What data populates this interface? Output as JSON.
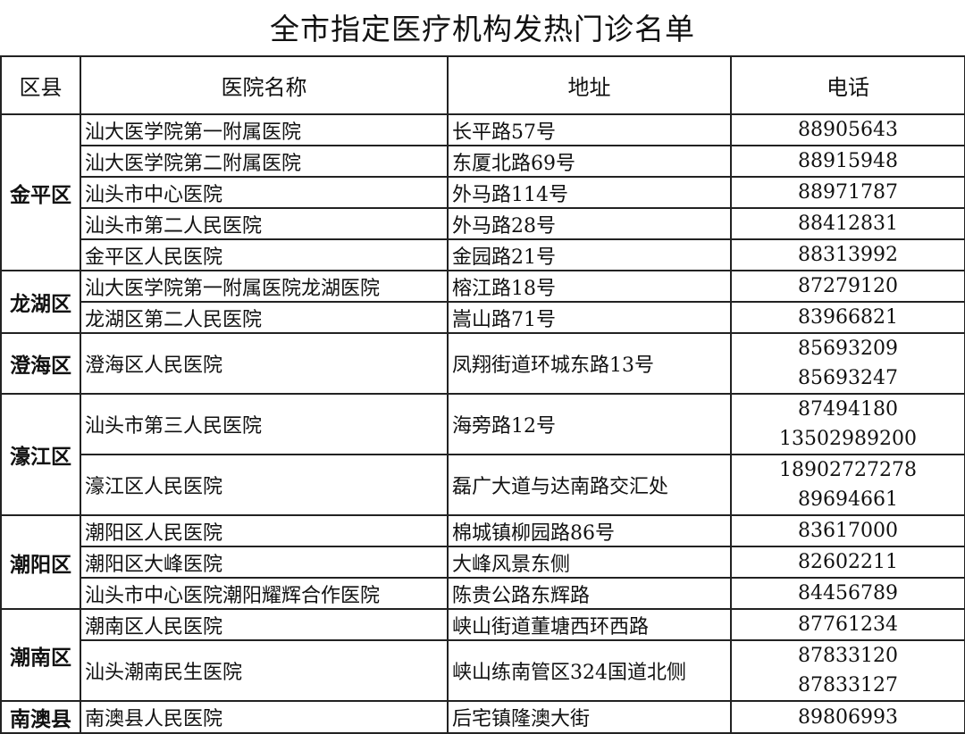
{
  "title": "全市指定医疗机构发热门诊名单",
  "headers": {
    "district": "区县",
    "hospital": "医院名称",
    "address": "地址",
    "phone": "电话"
  },
  "districts": [
    {
      "name": "金平区",
      "hospitals": [
        {
          "name": "汕大医学院第一附属医院",
          "address": "长平路57号",
          "phones": [
            "88905643"
          ]
        },
        {
          "name": "汕大医学院第二附属医院",
          "address": "东厦北路69号",
          "phones": [
            "88915948"
          ]
        },
        {
          "name": "汕头市中心医院",
          "address": "外马路114号",
          "phones": [
            "88971787"
          ]
        },
        {
          "name": "汕头市第二人民医院",
          "address": "外马路28号",
          "phones": [
            "88412831"
          ]
        },
        {
          "name": "金平区人民医院",
          "address": "金园路21号",
          "phones": [
            "88313992"
          ]
        }
      ]
    },
    {
      "name": "龙湖区",
      "hospitals": [
        {
          "name": "汕大医学院第一附属医院龙湖医院",
          "address": "榕江路18号",
          "phones": [
            "87279120"
          ]
        },
        {
          "name": "龙湖区第二人民医院",
          "address": "嵩山路71号",
          "phones": [
            "83966821"
          ]
        }
      ]
    },
    {
      "name": "澄海区",
      "hospitals": [
        {
          "name": "澄海区人民医院",
          "address": "凤翔街道环城东路13号",
          "phones": [
            "85693209",
            "85693247"
          ]
        }
      ]
    },
    {
      "name": "濠江区",
      "hospitals": [
        {
          "name": "汕头市第三人民医院",
          "address": "海旁路12号",
          "phones": [
            "87494180",
            "13502989200"
          ]
        },
        {
          "name": "濠江区人民医院",
          "address": "磊广大道与达南路交汇处",
          "phones": [
            "18902727278",
            "89694661"
          ]
        }
      ]
    },
    {
      "name": "潮阳区",
      "hospitals": [
        {
          "name": "潮阳区人民医院",
          "address": "棉城镇柳园路86号",
          "phones": [
            "83617000"
          ]
        },
        {
          "name": "潮阳区大峰医院",
          "address": "大峰风景东侧",
          "phones": [
            "82602211"
          ]
        },
        {
          "name": "汕头市中心医院潮阳耀辉合作医院",
          "address": "陈贵公路东辉路",
          "phones": [
            "84456789"
          ]
        }
      ]
    },
    {
      "name": "潮南区",
      "hospitals": [
        {
          "name": "潮南区人民医院",
          "address": "峡山街道董塘西环西路",
          "phones": [
            "87761234"
          ]
        },
        {
          "name": "汕头潮南民生医院",
          "address": "峡山练南管区324国道北侧",
          "phones": [
            "87833120",
            "87833127"
          ]
        }
      ]
    },
    {
      "name": "南澳县",
      "hospitals": [
        {
          "name": "南澳县人民医院",
          "address": "后宅镇隆澳大街",
          "phones": [
            "89806993"
          ]
        }
      ]
    }
  ]
}
